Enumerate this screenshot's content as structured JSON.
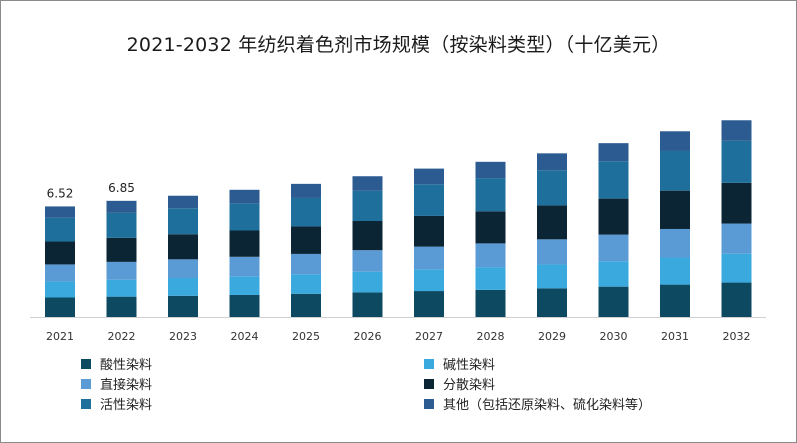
{
  "chart_data": {
    "type": "bar",
    "stacked": true,
    "title": "2021-2032 年纺织着色剂市场规模（按染料类型）（十亿美元）",
    "categories": [
      "2021",
      "2022",
      "2023",
      "2024",
      "2025",
      "2026",
      "2027",
      "2028",
      "2029",
      "2030",
      "2031",
      "2032"
    ],
    "totals": [
      6.52,
      6.85,
      7.15,
      7.5,
      7.85,
      8.3,
      8.75,
      9.15,
      9.65,
      10.25,
      10.95,
      11.6
    ],
    "data_labels": [
      "6.52",
      "6.85",
      "",
      "",
      "",
      "",
      "",
      "",
      "",
      "",
      "",
      ""
    ],
    "series": [
      {
        "name": "酸性染料",
        "color": "#0d4a62",
        "values": [
          1.15,
          1.2,
          1.25,
          1.3,
          1.37,
          1.45,
          1.53,
          1.6,
          1.69,
          1.79,
          1.91,
          2.03
        ]
      },
      {
        "name": "碱性染料",
        "color": "#3aa9de",
        "values": [
          0.95,
          1.0,
          1.05,
          1.1,
          1.15,
          1.22,
          1.28,
          1.34,
          1.41,
          1.5,
          1.6,
          1.7
        ]
      },
      {
        "name": "直接染料",
        "color": "#5b9bd5",
        "values": [
          1.0,
          1.05,
          1.1,
          1.15,
          1.2,
          1.27,
          1.34,
          1.4,
          1.48,
          1.57,
          1.68,
          1.78
        ]
      },
      {
        "name": "分散染料",
        "color": "#0b2534",
        "values": [
          1.35,
          1.42,
          1.48,
          1.55,
          1.62,
          1.72,
          1.81,
          1.89,
          2.0,
          2.12,
          2.26,
          2.4
        ]
      },
      {
        "name": "活性染料",
        "color": "#1f6f9c",
        "values": [
          1.4,
          1.47,
          1.53,
          1.6,
          1.68,
          1.78,
          1.87,
          1.96,
          2.07,
          2.2,
          2.34,
          2.48
        ]
      },
      {
        "name": "其他（包括还原染料、硫化染料等）",
        "color": "#2c5b91",
        "values": [
          0.67,
          0.71,
          0.74,
          0.8,
          0.83,
          0.86,
          0.92,
          0.96,
          1.0,
          1.07,
          1.16,
          1.21
        ]
      }
    ],
    "ylim": [
      0,
      12.5
    ],
    "grid": false,
    "legend_position": "bottom"
  }
}
